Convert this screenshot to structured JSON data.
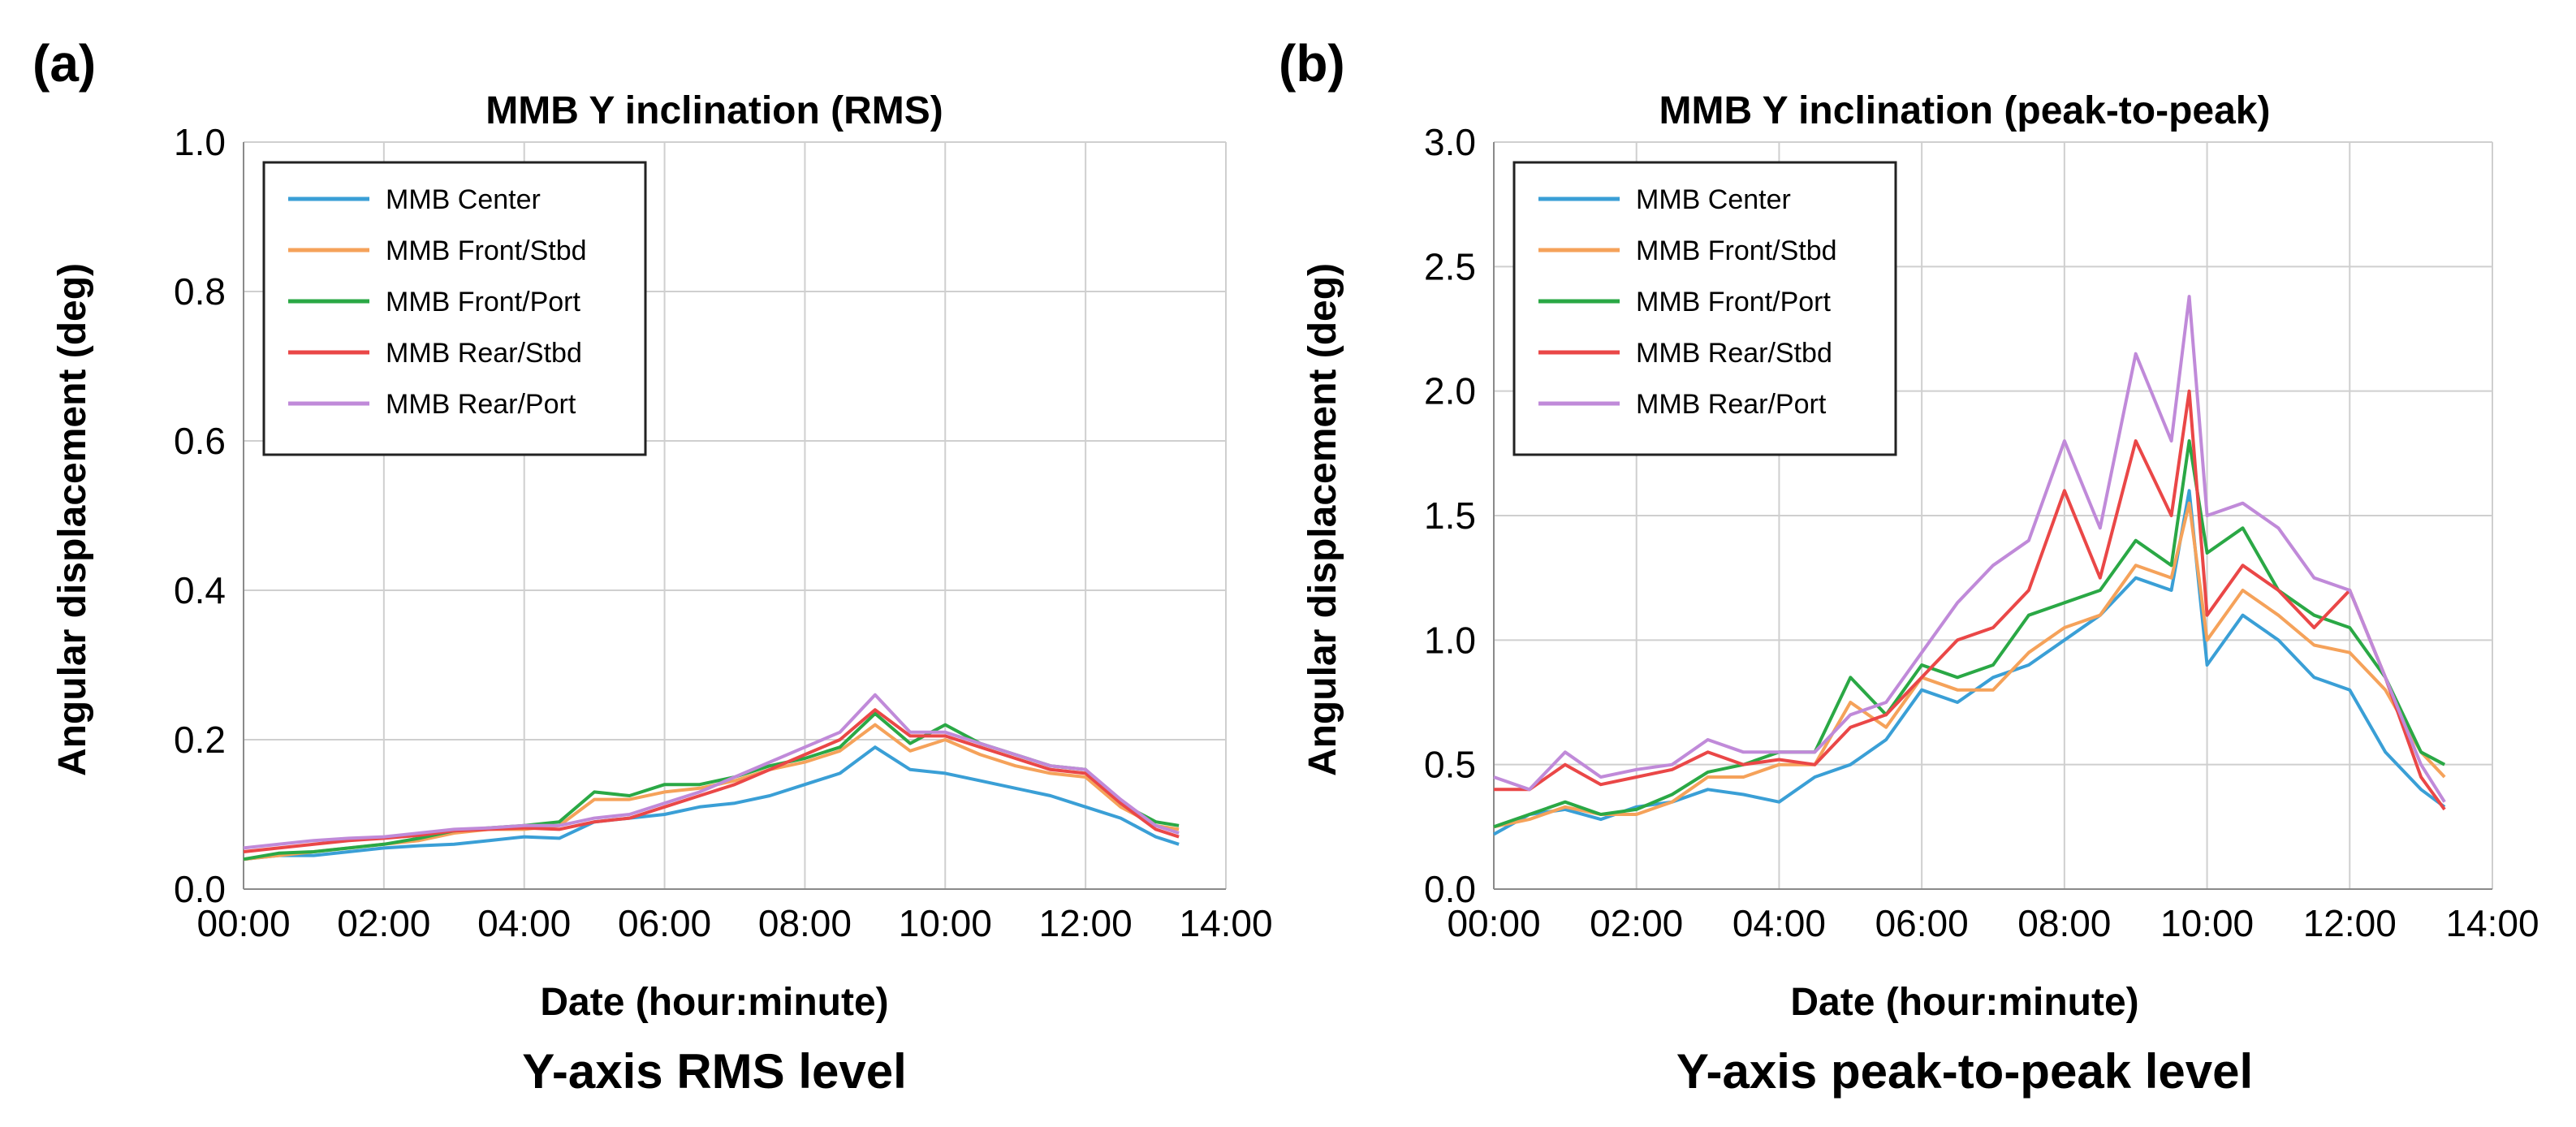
{
  "figure": {
    "panels": [
      {
        "letter": "(a)",
        "caption": "Y-axis RMS level"
      },
      {
        "letter": "(b)",
        "caption": "Y-axis peak-to-peak level"
      }
    ]
  },
  "chart_data": [
    {
      "type": "line",
      "title": "MMB Y inclination (RMS)",
      "xlabel": "Date (hour:minute)",
      "ylabel": "Angular displacement (deg)",
      "xlim": [
        0,
        14
      ],
      "ylim": [
        0,
        1.0
      ],
      "xticks": [
        "00:00",
        "02:00",
        "04:00",
        "06:00",
        "08:00",
        "10:00",
        "12:00",
        "14:00"
      ],
      "yticks": [
        "0.0",
        "0.2",
        "0.4",
        "0.6",
        "0.8",
        "1.0"
      ],
      "legend_position": "top-left",
      "x": [
        0,
        0.5,
        1,
        1.5,
        2,
        2.5,
        3,
        3.5,
        4,
        4.5,
        5,
        5.5,
        6,
        6.5,
        7,
        7.5,
        8,
        8.5,
        9,
        9.5,
        10,
        10.5,
        11,
        11.5,
        12,
        12.5,
        13,
        13.33
      ],
      "series": [
        {
          "name": "MMB Center",
          "color": "#3a9fd6",
          "values": [
            0.04,
            0.045,
            0.045,
            0.05,
            0.055,
            0.058,
            0.06,
            0.065,
            0.07,
            0.068,
            0.09,
            0.095,
            0.1,
            0.11,
            0.115,
            0.125,
            0.14,
            0.155,
            0.19,
            0.16,
            0.155,
            0.145,
            0.135,
            0.125,
            0.11,
            0.095,
            0.07,
            0.06
          ]
        },
        {
          "name": "MMB Front/Stbd",
          "color": "#f5a25a",
          "values": [
            0.04,
            0.045,
            0.05,
            0.055,
            0.06,
            0.065,
            0.075,
            0.08,
            0.08,
            0.085,
            0.12,
            0.12,
            0.13,
            0.135,
            0.145,
            0.16,
            0.17,
            0.185,
            0.22,
            0.185,
            0.2,
            0.18,
            0.165,
            0.155,
            0.15,
            0.11,
            0.085,
            0.08
          ]
        },
        {
          "name": "MMB Front/Port",
          "color": "#2aa845",
          "values": [
            0.04,
            0.048,
            0.05,
            0.055,
            0.06,
            0.068,
            0.078,
            0.082,
            0.085,
            0.09,
            0.13,
            0.125,
            0.14,
            0.14,
            0.15,
            0.165,
            0.175,
            0.19,
            0.235,
            0.195,
            0.22,
            0.195,
            0.18,
            0.165,
            0.16,
            0.115,
            0.09,
            0.085
          ]
        },
        {
          "name": "MMB Rear/Stbd",
          "color": "#ea4747",
          "values": [
            0.05,
            0.055,
            0.06,
            0.065,
            0.068,
            0.072,
            0.078,
            0.08,
            0.082,
            0.08,
            0.09,
            0.095,
            0.11,
            0.125,
            0.14,
            0.16,
            0.18,
            0.2,
            0.24,
            0.205,
            0.205,
            0.19,
            0.175,
            0.16,
            0.155,
            0.115,
            0.08,
            0.07
          ]
        },
        {
          "name": "MMB Rear/Port",
          "color": "#c08ad9",
          "values": [
            0.055,
            0.06,
            0.065,
            0.068,
            0.07,
            0.075,
            0.08,
            0.082,
            0.085,
            0.085,
            0.095,
            0.1,
            0.115,
            0.13,
            0.15,
            0.17,
            0.19,
            0.21,
            0.26,
            0.21,
            0.21,
            0.195,
            0.18,
            0.165,
            0.16,
            0.12,
            0.085,
            0.075
          ]
        }
      ]
    },
    {
      "type": "line",
      "title": "MMB Y inclination (peak-to-peak)",
      "xlabel": "Date (hour:minute)",
      "ylabel": "Angular displacement (deg)",
      "xlim": [
        0,
        14
      ],
      "ylim": [
        0,
        3.0
      ],
      "xticks": [
        "00:00",
        "02:00",
        "04:00",
        "06:00",
        "08:00",
        "10:00",
        "12:00",
        "14:00"
      ],
      "yticks": [
        "0.0",
        "0.5",
        "1.0",
        "1.5",
        "2.0",
        "2.5",
        "3.0"
      ],
      "legend_position": "top-left",
      "x": [
        0,
        0.5,
        1,
        1.5,
        2,
        2.5,
        3,
        3.5,
        4,
        4.5,
        5,
        5.5,
        6,
        6.5,
        7,
        7.5,
        8,
        8.5,
        9,
        9.5,
        9.75,
        10,
        10.5,
        11,
        11.5,
        12,
        12.5,
        13,
        13.33
      ],
      "series": [
        {
          "name": "MMB Center",
          "color": "#3a9fd6",
          "values": [
            0.22,
            0.3,
            0.32,
            0.28,
            0.33,
            0.35,
            0.4,
            0.38,
            0.35,
            0.45,
            0.5,
            0.6,
            0.8,
            0.75,
            0.85,
            0.9,
            1.0,
            1.1,
            1.25,
            1.2,
            1.6,
            0.9,
            1.1,
            1.0,
            0.85,
            0.8,
            0.55,
            0.4,
            0.33
          ]
        },
        {
          "name": "MMB Front/Stbd",
          "color": "#f5a25a",
          "values": [
            0.25,
            0.28,
            0.33,
            0.3,
            0.3,
            0.35,
            0.45,
            0.45,
            0.5,
            0.5,
            0.75,
            0.65,
            0.85,
            0.8,
            0.8,
            0.95,
            1.05,
            1.1,
            1.3,
            1.25,
            1.55,
            1.0,
            1.2,
            1.1,
            0.98,
            0.95,
            0.8,
            0.55,
            0.45
          ]
        },
        {
          "name": "MMB Front/Port",
          "color": "#2aa845",
          "values": [
            0.25,
            0.3,
            0.35,
            0.3,
            0.32,
            0.38,
            0.47,
            0.5,
            0.55,
            0.55,
            0.85,
            0.7,
            0.9,
            0.85,
            0.9,
            1.1,
            1.15,
            1.2,
            1.4,
            1.3,
            1.8,
            1.35,
            1.45,
            1.2,
            1.1,
            1.05,
            0.85,
            0.55,
            0.5
          ]
        },
        {
          "name": "MMB Rear/Stbd",
          "color": "#ea4747",
          "values": [
            0.4,
            0.4,
            0.5,
            0.42,
            0.45,
            0.48,
            0.55,
            0.5,
            0.52,
            0.5,
            0.65,
            0.7,
            0.85,
            1.0,
            1.05,
            1.2,
            1.6,
            1.25,
            1.8,
            1.5,
            2.0,
            1.1,
            1.3,
            1.2,
            1.05,
            1.2,
            0.85,
            0.45,
            0.32
          ]
        },
        {
          "name": "MMB Rear/Port",
          "color": "#c08ad9",
          "values": [
            0.45,
            0.4,
            0.55,
            0.45,
            0.48,
            0.5,
            0.6,
            0.55,
            0.55,
            0.55,
            0.7,
            0.75,
            0.95,
            1.15,
            1.3,
            1.4,
            1.8,
            1.45,
            2.15,
            1.8,
            2.38,
            1.5,
            1.55,
            1.45,
            1.25,
            1.2,
            0.85,
            0.5,
            0.35
          ]
        }
      ]
    }
  ]
}
